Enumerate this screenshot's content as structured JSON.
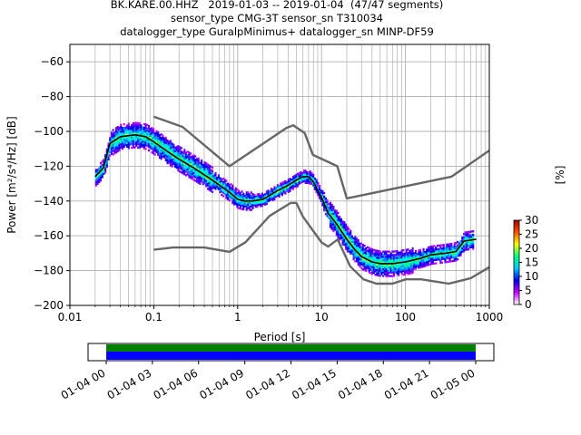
{
  "header": {
    "line1": "BK.KARE.00.HHZ   2019-01-03 -- 2019-01-04  (47/47 segments)",
    "line2": "sensor_type CMG-3T sensor_sn T310034",
    "line3": "datalogger_type GuralpMinimus+ datalogger_sn MINP-DF59"
  },
  "chart_data": [
    {
      "type": "heatmap",
      "title": "BK.KARE.00.HHZ   2019-01-03 -- 2019-01-04  (47/47 segments)",
      "xlabel": "Period [s]",
      "ylabel": "Power [m²/s⁴/Hz] [dB]",
      "x_scale": "log",
      "xlim": [
        0.01,
        1000
      ],
      "ylim": [
        -200,
        -50
      ],
      "x_ticks": [
        "0.01",
        "0.1",
        "1",
        "10",
        "100",
        "1000"
      ],
      "y_ticks": [
        "−60",
        "−80",
        "−100",
        "−120",
        "−140",
        "−160",
        "−180",
        "−200"
      ],
      "x_tick_values": [
        0.01,
        0.1,
        1,
        10,
        100,
        1000
      ],
      "y_tick_values": [
        -60,
        -80,
        -100,
        -120,
        -140,
        -160,
        -180,
        -200
      ],
      "grid": true,
      "colorbar": {
        "label": "[%]",
        "range": [
          0,
          30
        ],
        "ticks": [
          "0",
          "5",
          "10",
          "15",
          "20",
          "25",
          "30"
        ],
        "colors": [
          "#ffffff",
          "#cc00ff",
          "#0000ee",
          "#00c8ff",
          "#00ff80",
          "#ffff00",
          "#ff5000",
          "#a00000"
        ]
      },
      "series": [
        {
          "role": "mode",
          "color": "#000000",
          "x": [
            0.02,
            0.025,
            0.03,
            0.04,
            0.06,
            0.08,
            0.1,
            0.15,
            0.2,
            0.3,
            0.5,
            0.8,
            1,
            1.2,
            1.5,
            2,
            3,
            4,
            5,
            6,
            7,
            8,
            10,
            12,
            15,
            20,
            25,
            30,
            40,
            50,
            70,
            100,
            150,
            200,
            300,
            400,
            500,
            700
          ],
          "y": [
            -126,
            -121,
            -107,
            -103,
            -102,
            -103,
            -106,
            -112,
            -116,
            -121,
            -128,
            -135,
            -139,
            -140,
            -140,
            -139,
            -134,
            -131,
            -128,
            -126,
            -126,
            -129,
            -138,
            -147,
            -153,
            -162,
            -168,
            -172,
            -175,
            -176,
            -176,
            -175,
            -173,
            -171,
            -170,
            -169,
            -163,
            -162
          ]
        },
        {
          "role": "high_noise_model",
          "color": "#666666",
          "x": [
            0.1,
            0.22,
            0.8,
            3.8,
            4.6,
            6.3,
            7.9,
            15.4,
            20,
            354.8,
            1000
          ],
          "y": [
            -91.5,
            -97.4,
            -120,
            -98,
            -96.5,
            -101,
            -113.5,
            -120,
            -138.5,
            -126,
            -111
          ]
        },
        {
          "role": "low_noise_model",
          "color": "#666666",
          "x": [
            0.1,
            0.17,
            0.4,
            0.8,
            1.24,
            2.4,
            4.3,
            5.0,
            6.0,
            10.0,
            12.0,
            15.6,
            21.9,
            31.6,
            45.0,
            70.0,
            101.0,
            154.0,
            328.0,
            600.0,
            1000.0
          ],
          "y": [
            -168,
            -166.7,
            -166.7,
            -169.2,
            -163.7,
            -148.6,
            -141.1,
            -141.1,
            -149,
            -163.8,
            -166.2,
            -162.1,
            -177.5,
            -185,
            -187.5,
            -187.5,
            -185,
            -185,
            -187.5,
            -184.4,
            -178
          ]
        }
      ]
    },
    {
      "type": "timeline",
      "x_ticks": [
        "01-04 00",
        "01-04 03",
        "01-04 06",
        "01-04 09",
        "01-04 12",
        "01-04 15",
        "01-04 18",
        "01-04 21",
        "01-05 00"
      ],
      "range": [
        "01-04 00",
        "01-05 00"
      ],
      "bars": [
        {
          "name": "data_coverage",
          "color": "#008000",
          "start": "01-04 00",
          "end": "01-05 00"
        },
        {
          "name": "psd_segments",
          "color": "#0000ff",
          "start": "01-04 00",
          "end": "01-05 00"
        }
      ]
    }
  ]
}
